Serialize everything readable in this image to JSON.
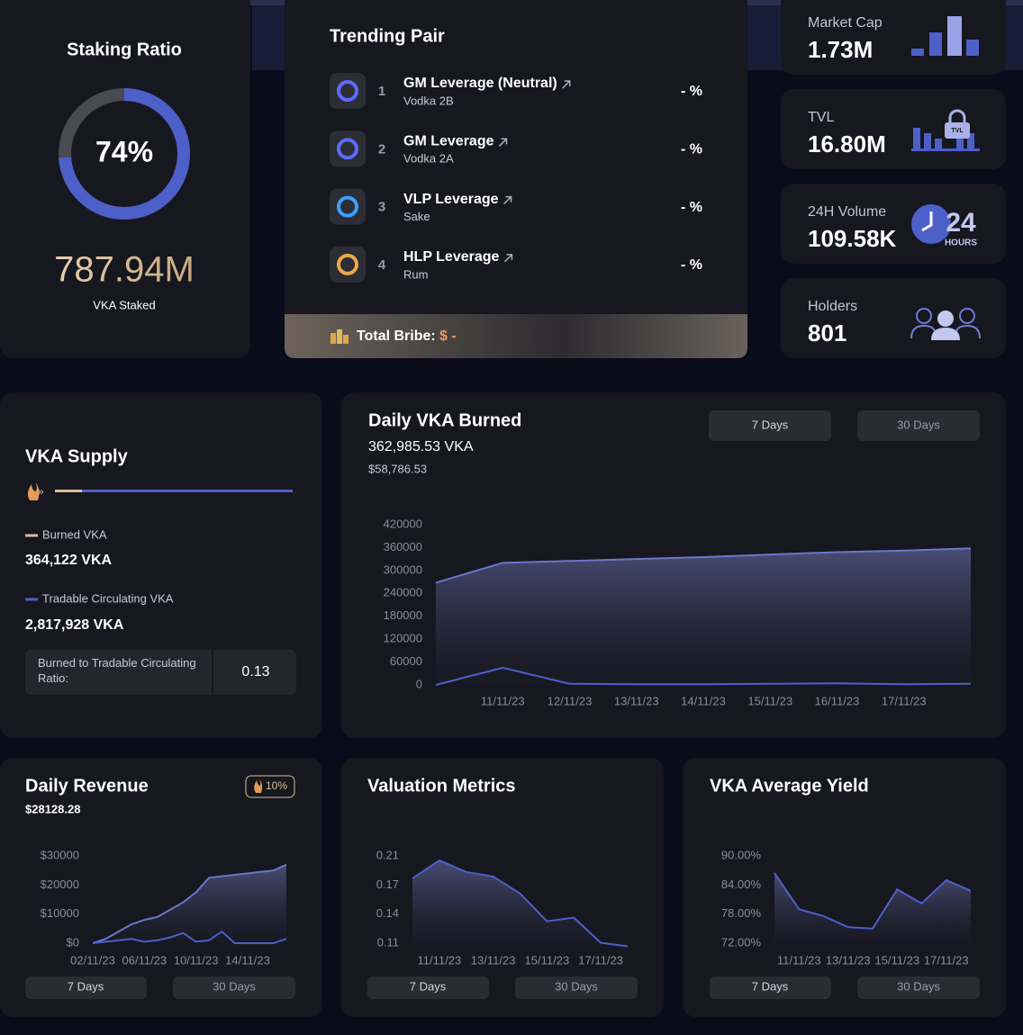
{
  "staking": {
    "title": "Staking Ratio",
    "ratio": 74,
    "ratio_label": "74%",
    "staked": "787.94M",
    "staked_label": "VKA Staked"
  },
  "trending": {
    "title": "Trending Pair",
    "rows": [
      {
        "rank": "1",
        "name": "GM Leverage (Neutral)",
        "sub": "Vodka 2B",
        "change": "- %"
      },
      {
        "rank": "2",
        "name": "GM Leverage",
        "sub": "Vodka 2A",
        "change": "- %"
      },
      {
        "rank": "3",
        "name": "VLP Leverage",
        "sub": "Sake",
        "change": "- %"
      },
      {
        "rank": "4",
        "name": "HLP Leverage",
        "sub": "Rum",
        "change": "- %"
      }
    ],
    "bribe_label": "Total Bribe:",
    "bribe_value": "$ -"
  },
  "stats": [
    {
      "label": "Market Cap",
      "value": "1.73M"
    },
    {
      "label": "TVL",
      "value": "16.80M",
      "icon_text": "TVL"
    },
    {
      "label": "24H Volume",
      "value": "109.58K",
      "icon_number": "24",
      "icon_unit": "HOURS"
    },
    {
      "label": "Holders",
      "value": "801"
    }
  ],
  "supply": {
    "title": "VKA Supply",
    "burned": {
      "name": "Burned VKA",
      "value": 364122,
      "value_label": "364,122 VKA",
      "color": "#d9bf98"
    },
    "tradable": {
      "name": "Tradable Circulating VKA",
      "value": 2817928,
      "value_label": "2,817,928 VKA",
      "color": "#4d5fc8"
    },
    "ratio_label": "Burned to Tradable Circulating Ratio:",
    "ratio": 0.13
  },
  "burned": {
    "title": "Daily VKA Burned",
    "amount": "362,985.53 VKA",
    "usd": "$58,786.53",
    "buttons": [
      "7 Days",
      "30 Days"
    ],
    "chart": {
      "type": "area",
      "categories": [
        null,
        "11/11/23",
        "12/11/23",
        "13/11/23",
        "14/11/23",
        "15/11/23",
        "16/11/23",
        "17/11/23",
        null
      ],
      "series": [
        {
          "color": "#6b76c8",
          "area": true,
          "values": [
            268000,
            320000,
            325000,
            330000,
            335000,
            342000,
            348000,
            352000,
            358000
          ]
        },
        {
          "color": "#4d5fc8",
          "area": false,
          "values": [
            0,
            45000,
            3000,
            2000,
            2000,
            3000,
            4000,
            2000,
            3000
          ]
        }
      ],
      "ylim": [
        0,
        420000
      ],
      "yticks": [
        0,
        60000,
        120000,
        180000,
        240000,
        300000,
        360000,
        420000
      ]
    }
  },
  "revenue": {
    "title": "Daily Revenue",
    "amount": "$28128.28",
    "badge": "10%",
    "buttons": [
      "7 Days",
      "30 Days"
    ],
    "chart": {
      "type": "area",
      "categories": [
        "02/11/23",
        null,
        null,
        null,
        "06/11/23",
        null,
        null,
        null,
        "10/11/23",
        null,
        null,
        null,
        "14/11/23",
        null,
        null,
        null
      ],
      "series": [
        {
          "color": "#6b76c8",
          "area": true,
          "values": [
            0,
            1500,
            4000,
            6500,
            8000,
            9000,
            11500,
            14000,
            17500,
            22500,
            23000,
            23500,
            24000,
            24500,
            25000,
            27000
          ]
        },
        {
          "color": "#4d5fc8",
          "area": false,
          "values": [
            0,
            500,
            1000,
            1500,
            500,
            1000,
            2000,
            3500,
            500,
            1000,
            4000,
            0,
            0,
            0,
            0,
            1500
          ]
        }
      ],
      "ylim": [
        0,
        30000
      ],
      "yticks": [
        {
          "value": 0,
          "label": "$0"
        },
        {
          "value": 10000,
          "label": "$10000"
        },
        {
          "value": 20000,
          "label": "$20000"
        },
        {
          "value": 30000,
          "label": "$30000"
        }
      ]
    }
  },
  "valuation": {
    "title": "Valuation Metrics",
    "buttons": [
      "7 Days",
      "30 Days"
    ],
    "chart": {
      "type": "area",
      "categories": [
        null,
        "11/11/23",
        null,
        "13/11/23",
        null,
        "15/11/23",
        null,
        "17/11/23",
        null
      ],
      "series": [
        {
          "color": "#4d5fc8",
          "area": true,
          "values": [
            0.18,
            0.2,
            0.187,
            0.182,
            0.163,
            0.132,
            0.136,
            0.108,
            0.104
          ]
        }
      ],
      "ylim": [
        0.1075,
        0.205
      ],
      "yticks": [
        {
          "value": 0.1075,
          "label": "0.11"
        },
        0.14,
        {
          "value": 0.1725,
          "label": "0.17"
        },
        {
          "value": 0.205,
          "label": "0.21"
        }
      ]
    }
  },
  "yield": {
    "title": "VKA Average Yield",
    "buttons": [
      "7 Days",
      "30 Days"
    ],
    "chart": {
      "type": "area",
      "categories": [
        null,
        "11/11/23",
        null,
        "13/11/23",
        null,
        "15/11/23",
        null,
        "17/11/23",
        null
      ],
      "series": [
        {
          "color": "#4d5fc8",
          "area": true,
          "values": [
            86.5,
            79,
            77.6,
            75.3,
            75,
            83.1,
            80.2,
            85,
            82.8
          ]
        }
      ],
      "ylim": [
        72,
        90
      ],
      "yticks": [
        {
          "value": 72,
          "label": "72.00%"
        },
        {
          "value": 78,
          "label": "78.00%"
        },
        {
          "value": 84,
          "label": "84.00%"
        },
        {
          "value": 90,
          "label": "90.00%"
        }
      ]
    }
  }
}
